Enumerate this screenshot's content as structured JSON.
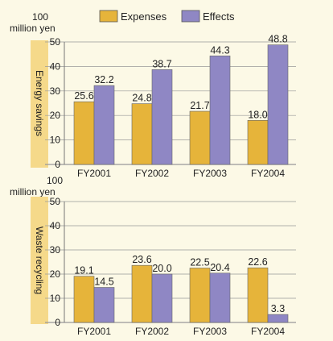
{
  "colors": {
    "background": "#fcf9e6",
    "expenses": "#e6b43a",
    "effects": "#8f87c4",
    "side_band": "#f5d98a",
    "grid": "#999999"
  },
  "legend": {
    "position": "top",
    "items": [
      {
        "label": "Expenses",
        "color": "#e6b43a"
      },
      {
        "label": "Effects",
        "color": "#8f87c4"
      }
    ]
  },
  "chart_data": [
    {
      "type": "bar",
      "unit_label_top": "100",
      "unit_label_bottom": "million yen",
      "ylabel": "Energy savings",
      "ylim": [
        0,
        50
      ],
      "yticks": [
        0,
        10,
        20,
        30,
        40,
        50
      ],
      "grid": true,
      "categories": [
        "FY2001",
        "FY2002",
        "FY2003",
        "FY2004"
      ],
      "series": [
        {
          "name": "Expenses",
          "values": [
            25.6,
            24.8,
            21.7,
            18.0
          ],
          "labels": [
            "25.6",
            "24.8",
            "21.7",
            "18.0"
          ]
        },
        {
          "name": "Effects",
          "values": [
            32.2,
            38.7,
            44.3,
            48.8
          ],
          "labels": [
            "32.2",
            "38.7",
            "44.3",
            "48.8"
          ]
        }
      ]
    },
    {
      "type": "bar",
      "unit_label_top": "100",
      "unit_label_bottom": "million yen",
      "ylabel": "Waste recycling",
      "ylim": [
        0,
        50
      ],
      "yticks": [
        0,
        10,
        20,
        30,
        40,
        50
      ],
      "grid": true,
      "categories": [
        "FY2001",
        "FY2002",
        "FY2003",
        "FY2004"
      ],
      "series": [
        {
          "name": "Expenses",
          "values": [
            19.1,
            23.6,
            22.5,
            22.6
          ],
          "labels": [
            "19.1",
            "23.6",
            "22.5",
            "22.6"
          ]
        },
        {
          "name": "Effects",
          "values": [
            14.5,
            20.0,
            20.4,
            3.3
          ],
          "labels": [
            "14.5",
            "20.0",
            "20.4",
            "3.3"
          ]
        }
      ]
    }
  ]
}
